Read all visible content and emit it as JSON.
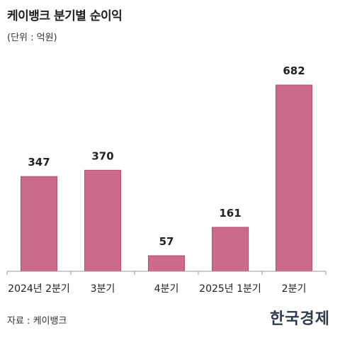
{
  "header": {
    "title": "케이뱅크 분기별 순이익",
    "unit": "(단위 : 억원)"
  },
  "footer": {
    "source": "자료 : 케이뱅크",
    "logo": "한국경제"
  },
  "colors": {
    "bar_fill": "#cc6a8c",
    "bar_stroke": "#b04f72",
    "axis": "#999999"
  },
  "chart_data": {
    "type": "bar",
    "title": "케이뱅크 분기별 순이익",
    "ylabel": "(단위 : 억원)",
    "categories": [
      "2024년 2분기",
      "3분기",
      "4분기",
      "2025년 1분기",
      "2분기"
    ],
    "values": [
      347,
      370,
      57,
      161,
      682
    ],
    "grid": false,
    "legend": "none"
  }
}
